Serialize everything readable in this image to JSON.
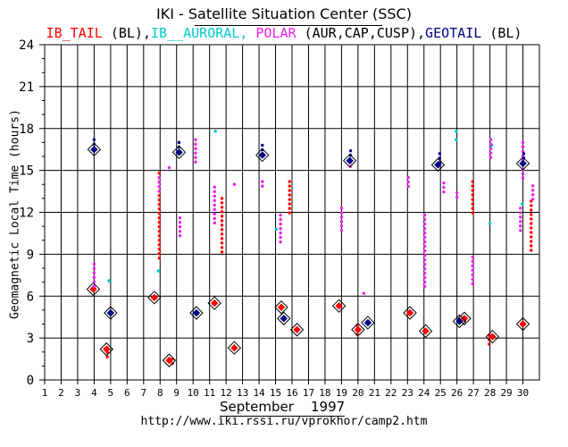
{
  "header": {
    "title": "IKI - Satellite Situation Center (SSC)",
    "legend_parts": [
      {
        "text": "IB_TAIL",
        "color": "#ff0000"
      },
      {
        "text": " (BL),",
        "color": "#000000"
      },
      {
        "text": "IB__AURORAL,",
        "color": "#00cccc"
      },
      {
        "text": " POLAR",
        "color": "#ee22ee"
      },
      {
        "text": " (AUR,CAP,CUSP),",
        "color": "#000000"
      },
      {
        "text": "GEOTAIL",
        "color": "#000088"
      },
      {
        "text": " (BL)",
        "color": "#000000"
      }
    ]
  },
  "footer": {
    "month_label": "September    1997",
    "url": "http://www.iki.rssi.ru/vprokhor/camp2.htm"
  },
  "chart_data": {
    "type": "scatter",
    "title": "IKI - Satellite Situation Center (SSC)",
    "xlabel": "September    1997",
    "ylabel": "Geomagnetic Local Time (hours)",
    "xlim": [
      1,
      31
    ],
    "ylim": [
      0,
      24
    ],
    "x_ticks": [
      1,
      2,
      3,
      4,
      5,
      6,
      7,
      8,
      9,
      10,
      11,
      12,
      13,
      14,
      15,
      16,
      17,
      18,
      19,
      20,
      21,
      22,
      23,
      24,
      25,
      26,
      27,
      28,
      29,
      30
    ],
    "y_ticks": [
      0,
      3,
      6,
      9,
      12,
      15,
      18,
      21,
      24
    ],
    "grid": true,
    "colors": {
      "ib_tail": "#ff0000",
      "ib_auroral": "#00cccc",
      "polar": "#ee22ee",
      "geotail": "#000088",
      "grid": "#000000"
    },
    "series": [
      {
        "name": "IB_TAIL",
        "color": "#ff0000",
        "diamonds": [
          {
            "day": 3.95,
            "mlt": 6.5
          },
          {
            "day": 4.75,
            "mlt": 2.2
          },
          {
            "day": 7.65,
            "mlt": 5.9
          },
          {
            "day": 8.55,
            "mlt": 1.4
          },
          {
            "day": 11.3,
            "mlt": 5.5
          },
          {
            "day": 12.5,
            "mlt": 2.3
          },
          {
            "day": 15.35,
            "mlt": 5.2
          },
          {
            "day": 16.3,
            "mlt": 3.6
          },
          {
            "day": 18.85,
            "mlt": 5.3
          },
          {
            "day": 20.0,
            "mlt": 3.6
          },
          {
            "day": 23.15,
            "mlt": 4.8
          },
          {
            "day": 24.1,
            "mlt": 3.5
          },
          {
            "day": 26.45,
            "mlt": 4.4
          },
          {
            "day": 28.15,
            "mlt": 3.1
          },
          {
            "day": 30.0,
            "mlt": 4.0
          }
        ],
        "tracks": [
          {
            "day": 4.8,
            "from": 1.5,
            "to": 2.3
          },
          {
            "day": 7.95,
            "from": 8.5,
            "to": 14.8
          },
          {
            "day": 8.75,
            "from": 0.9,
            "to": 1.5
          },
          {
            "day": 11.75,
            "from": 9.0,
            "to": 13.0
          },
          {
            "day": 15.85,
            "from": 11.8,
            "to": 14.2
          },
          {
            "day": 19.95,
            "from": 3.0,
            "to": 3.9
          },
          {
            "day": 26.95,
            "from": 11.8,
            "to": 14.2
          },
          {
            "day": 27.95,
            "from": 2.4,
            "to": 3.2
          },
          {
            "day": 30.5,
            "from": 9.2,
            "to": 12.8
          }
        ]
      },
      {
        "name": "IB__AURORAL",
        "color": "#00cccc",
        "points": [
          {
            "day": 4.9,
            "mlt": 7.1
          },
          {
            "day": 7.9,
            "mlt": 7.8
          },
          {
            "day": 11.35,
            "mlt": 17.8
          },
          {
            "day": 15.05,
            "mlt": 10.8
          },
          {
            "day": 25.95,
            "mlt": 17.8
          },
          {
            "day": 25.95,
            "mlt": 17.2
          },
          {
            "day": 28.1,
            "mlt": 16.8
          },
          {
            "day": 28.0,
            "mlt": 11.2
          },
          {
            "day": 29.95,
            "mlt": 12.6
          }
        ]
      },
      {
        "name": "POLAR",
        "color": "#ee22ee",
        "tracks": [
          {
            "day": 4.0,
            "from": 6.6,
            "to": 8.3
          },
          {
            "day": 7.95,
            "from": 13.5,
            "to": 14.5
          },
          {
            "day": 8.55,
            "from": 14.9,
            "to": 15.2
          },
          {
            "day": 9.2,
            "from": 10.3,
            "to": 11.6
          },
          {
            "day": 10.15,
            "from": 15.3,
            "to": 17.2
          },
          {
            "day": 11.3,
            "from": 11.0,
            "to": 13.8
          },
          {
            "day": 12.5,
            "from": 13.8,
            "to": 14.0
          },
          {
            "day": 14.2,
            "from": 13.6,
            "to": 14.2
          },
          {
            "day": 15.3,
            "from": 9.6,
            "to": 11.8
          },
          {
            "day": 19.0,
            "from": 10.5,
            "to": 12.3
          },
          {
            "day": 19.55,
            "from": 15.0,
            "to": 15.6
          },
          {
            "day": 20.35,
            "from": 6.0,
            "to": 6.2
          },
          {
            "day": 23.05,
            "from": 13.7,
            "to": 14.5
          },
          {
            "day": 24.05,
            "from": 6.6,
            "to": 11.8
          },
          {
            "day": 25.2,
            "from": 13.2,
            "to": 14.1
          },
          {
            "day": 26.0,
            "from": 12.9,
            "to": 13.4
          },
          {
            "day": 26.95,
            "from": 6.8,
            "to": 8.8
          },
          {
            "day": 28.05,
            "from": 15.9,
            "to": 17.2
          },
          {
            "day": 29.85,
            "from": 10.5,
            "to": 12.3
          },
          {
            "day": 30.0,
            "from": 14.3,
            "to": 17.0
          },
          {
            "day": 30.6,
            "from": 12.8,
            "to": 13.9
          }
        ]
      },
      {
        "name": "GEOTAIL",
        "color": "#000088",
        "diamonds": [
          {
            "day": 4.0,
            "mlt": 16.5
          },
          {
            "day": 5.0,
            "mlt": 4.8
          },
          {
            "day": 9.15,
            "mlt": 16.3
          },
          {
            "day": 10.2,
            "mlt": 4.8
          },
          {
            "day": 14.2,
            "mlt": 16.1
          },
          {
            "day": 15.5,
            "mlt": 4.4
          },
          {
            "day": 19.5,
            "mlt": 15.7
          },
          {
            "day": 20.6,
            "mlt": 4.1
          },
          {
            "day": 24.85,
            "mlt": 15.4
          },
          {
            "day": 26.15,
            "mlt": 4.2
          },
          {
            "day": 30.0,
            "mlt": 15.5
          }
        ],
        "tracks": [
          {
            "day": 4.0,
            "from": 16.6,
            "to": 17.2
          },
          {
            "day": 9.15,
            "from": 16.4,
            "to": 17.0
          },
          {
            "day": 14.2,
            "from": 16.2,
            "to": 16.8
          },
          {
            "day": 19.55,
            "from": 15.8,
            "to": 16.4
          },
          {
            "day": 24.95,
            "from": 15.5,
            "to": 16.2
          },
          {
            "day": 30.05,
            "from": 15.6,
            "to": 16.2
          }
        ]
      }
    ]
  }
}
